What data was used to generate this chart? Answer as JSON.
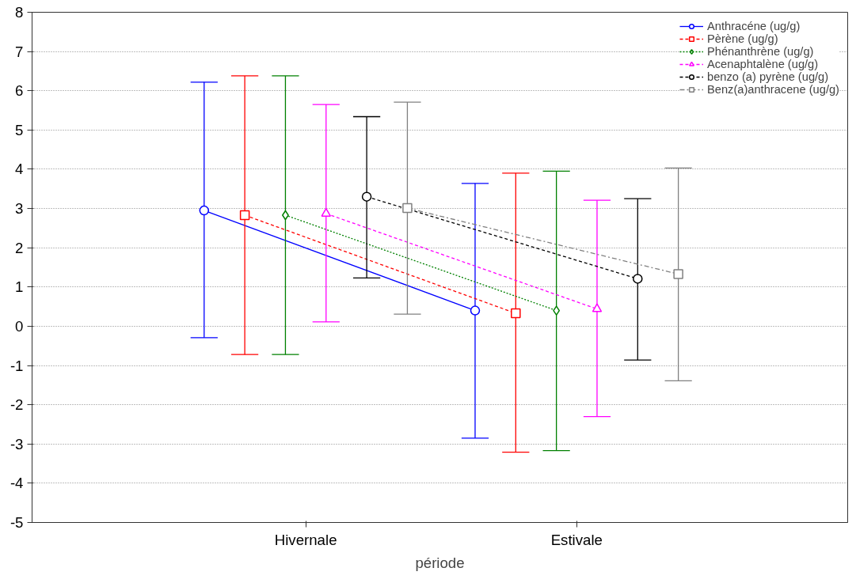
{
  "chart_data": {
    "type": "line",
    "xlabel": "période",
    "categories": [
      "Hivernale",
      "Estivale"
    ],
    "ylim": [
      -5,
      8
    ],
    "yticks": [
      -5,
      -4,
      -3,
      -2,
      -1,
      0,
      1,
      2,
      3,
      4,
      5,
      6,
      7,
      8
    ],
    "grid": "y",
    "legend": "top right",
    "series": [
      {
        "name": "Anthracéne (ug/g)",
        "color": "#0000ff",
        "marker": "circle",
        "line_style": "solid",
        "values": [
          2.95,
          0.4
        ],
        "errors": [
          [
            -0.29,
            6.22
          ],
          [
            -2.85,
            3.64
          ]
        ]
      },
      {
        "name": "Pèrène (ug/g)",
        "color": "#ff0000",
        "marker": "square",
        "line_style": "dashed",
        "values": [
          2.83,
          0.33
        ],
        "errors": [
          [
            -0.72,
            6.38
          ],
          [
            -3.21,
            3.9
          ]
        ]
      },
      {
        "name": "Phénanthrène (ug/g)",
        "color": "#008000",
        "marker": "diamond",
        "line_style": "dotted",
        "values": [
          2.83,
          0.4
        ],
        "errors": [
          [
            -0.72,
            6.38
          ],
          [
            -3.17,
            3.95
          ]
        ]
      },
      {
        "name": "Acenaphtalène (ug/g)",
        "color": "#ff00ff",
        "marker": "triangle",
        "line_style": "dashed",
        "values": [
          2.87,
          0.44
        ],
        "errors": [
          [
            0.11,
            5.65
          ],
          [
            -2.3,
            3.21
          ]
        ]
      },
      {
        "name": "benzo (a) pyrène (ug/g)",
        "color": "#000000",
        "marker": "circle",
        "line_style": "dashed",
        "values": [
          3.3,
          1.21
        ],
        "errors": [
          [
            1.23,
            5.34
          ],
          [
            -0.86,
            3.25
          ]
        ]
      },
      {
        "name": "Benz(a)anthracene (ug/g)",
        "color": "#808080",
        "marker": "square",
        "line_style": "dashdot",
        "values": [
          3.01,
          1.33
        ],
        "errors": [
          [
            0.31,
            5.71
          ],
          [
            -1.39,
            4.03
          ]
        ]
      }
    ]
  }
}
